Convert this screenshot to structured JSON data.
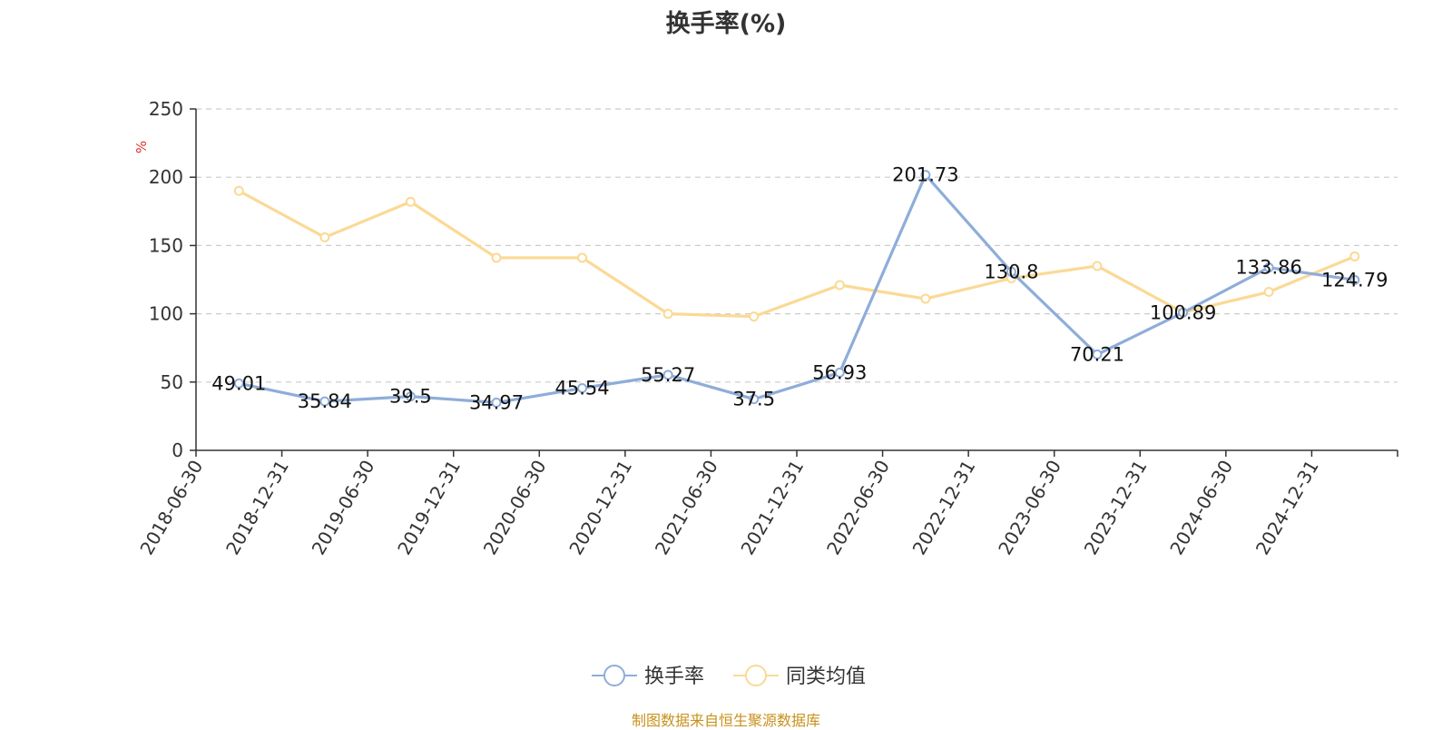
{
  "title": "换手率(%)",
  "source_note": "制图数据来自恒生聚源数据库",
  "chart_data": {
    "type": "line",
    "title": "换手率(%)",
    "ylabel": "%",
    "ylim": [
      0,
      250
    ],
    "yticks": [
      0,
      50,
      100,
      150,
      200,
      250
    ],
    "grid": true,
    "legend_position": "bottom-center",
    "categories": [
      "2018-06-30",
      "2018-12-31",
      "2019-06-30",
      "2019-12-31",
      "2020-06-30",
      "2020-12-31",
      "2021-06-30",
      "2021-12-31",
      "2022-06-30",
      "2022-12-31",
      "2023-06-30",
      "2023-12-31",
      "2024-06-30",
      "2024-12-31"
    ],
    "series": [
      {
        "name": "换手率",
        "color": "#8eadd9",
        "values": [
          49.01,
          35.84,
          39.5,
          34.97,
          45.54,
          55.27,
          37.5,
          56.93,
          201.73,
          130.8,
          70.21,
          100.89,
          133.86,
          124.79
        ],
        "labels": [
          "49.01",
          "35.84",
          "39.5",
          "34.97",
          "45.54",
          "55.27",
          "37.5",
          "56.93",
          "201.73",
          "130.8",
          "70.21",
          "100.89",
          "133.86",
          "124.79"
        ]
      },
      {
        "name": "同类均值",
        "color": "#fbd995",
        "values": [
          190,
          156,
          182,
          141,
          141,
          100,
          98,
          121,
          111,
          126,
          135,
          101,
          116,
          142
        ]
      }
    ]
  }
}
